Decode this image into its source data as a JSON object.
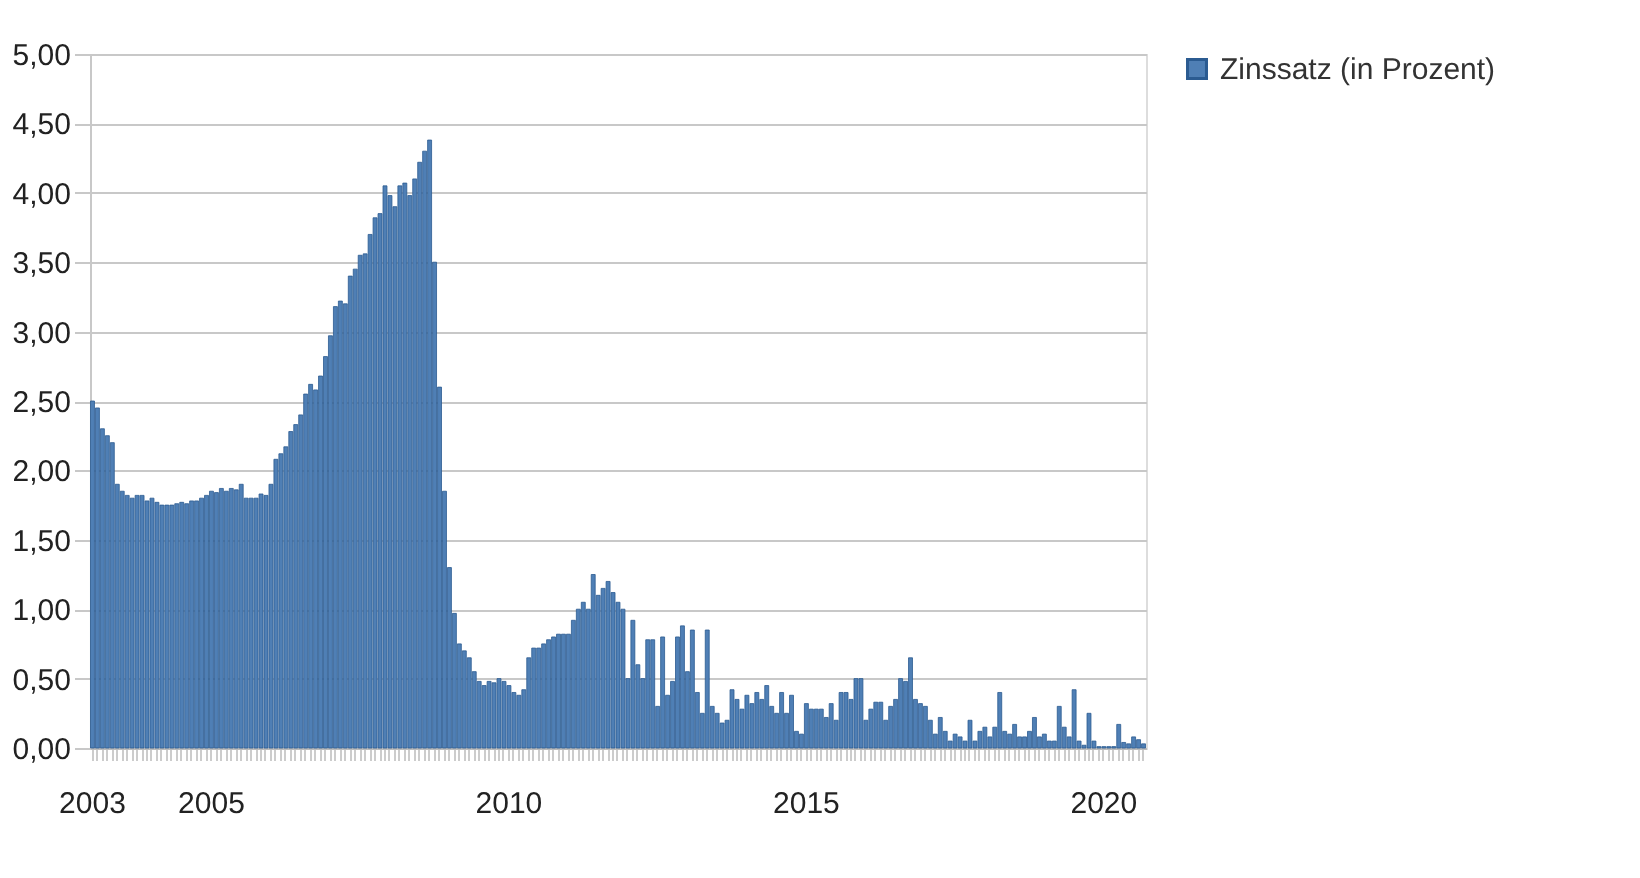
{
  "chart_data": {
    "type": "bar",
    "categories": [
      "2003",
      null,
      null,
      null,
      null,
      null,
      null,
      null,
      null,
      null,
      null,
      null,
      null,
      null,
      null,
      null,
      null,
      null,
      null,
      null,
      null,
      null,
      null,
      null,
      "2005",
      null,
      null,
      null,
      null,
      null,
      null,
      null,
      null,
      null,
      null,
      null,
      null,
      null,
      null,
      null,
      null,
      null,
      null,
      null,
      null,
      null,
      null,
      null,
      null,
      null,
      null,
      null,
      null,
      null,
      null,
      null,
      null,
      null,
      null,
      null,
      null,
      null,
      null,
      null,
      null,
      null,
      null,
      null,
      null,
      null,
      null,
      null,
      null,
      null,
      null,
      null,
      null,
      null,
      null,
      null,
      null,
      null,
      null,
      null,
      "2010",
      null,
      null,
      null,
      null,
      null,
      null,
      null,
      null,
      null,
      null,
      null,
      null,
      null,
      null,
      null,
      null,
      null,
      null,
      null,
      null,
      null,
      null,
      null,
      null,
      null,
      null,
      null,
      null,
      null,
      null,
      null,
      null,
      null,
      null,
      null,
      null,
      null,
      null,
      null,
      null,
      null,
      null,
      null,
      null,
      null,
      null,
      null,
      null,
      null,
      null,
      null,
      null,
      null,
      null,
      null,
      null,
      null,
      null,
      null,
      "2015",
      null,
      null,
      null,
      null,
      null,
      null,
      null,
      null,
      null,
      null,
      null,
      null,
      null,
      null,
      null,
      null,
      null,
      null,
      null,
      null,
      null,
      null,
      null,
      null,
      null,
      null,
      null,
      null,
      null,
      null,
      null,
      null,
      null,
      null,
      null,
      null,
      null,
      null,
      null,
      null,
      null,
      null,
      null,
      null,
      null,
      null,
      null,
      null,
      null,
      null,
      null,
      null,
      null,
      null,
      null,
      null,
      null,
      null,
      null,
      "2020",
      null,
      null,
      null,
      null,
      null,
      null,
      null,
      null
    ],
    "series": [
      {
        "name": "Zinssatz (in Prozent)",
        "color": "#4f7fb5",
        "values": [
          2.5,
          2.45,
          2.3,
          2.25,
          2.2,
          1.9,
          1.85,
          1.82,
          1.8,
          1.82,
          1.82,
          1.78,
          1.8,
          1.77,
          1.75,
          1.75,
          1.75,
          1.76,
          1.77,
          1.76,
          1.78,
          1.78,
          1.8,
          1.82,
          1.85,
          1.84,
          1.87,
          1.85,
          1.87,
          1.86,
          1.9,
          1.8,
          1.8,
          1.8,
          1.83,
          1.82,
          1.9,
          2.08,
          2.12,
          2.17,
          2.28,
          2.33,
          2.4,
          2.55,
          2.62,
          2.58,
          2.68,
          2.82,
          2.97,
          3.18,
          3.22,
          3.2,
          3.4,
          3.45,
          3.55,
          3.56,
          3.7,
          3.82,
          3.85,
          4.05,
          3.98,
          3.9,
          4.05,
          4.07,
          3.98,
          4.1,
          4.22,
          4.3,
          4.38,
          3.5,
          2.6,
          1.85,
          1.3,
          0.97,
          0.75,
          0.7,
          0.65,
          0.55,
          0.48,
          0.45,
          0.48,
          0.47,
          0.5,
          0.48,
          0.45,
          0.4,
          0.38,
          0.42,
          0.65,
          0.72,
          0.72,
          0.75,
          0.78,
          0.8,
          0.82,
          0.82,
          0.82,
          0.92,
          1.0,
          1.05,
          1.0,
          1.25,
          1.1,
          1.15,
          1.2,
          1.12,
          1.05,
          1.0,
          0.5,
          0.92,
          0.6,
          0.5,
          0.78,
          0.78,
          0.3,
          0.8,
          0.38,
          0.48,
          0.8,
          0.88,
          0.55,
          0.85,
          0.4,
          0.25,
          0.85,
          0.3,
          0.25,
          0.18,
          0.2,
          0.42,
          0.35,
          0.28,
          0.38,
          0.32,
          0.4,
          0.35,
          0.45,
          0.3,
          0.25,
          0.4,
          0.25,
          0.38,
          0.12,
          0.1,
          0.32,
          0.28,
          0.28,
          0.28,
          0.22,
          0.32,
          0.2,
          0.4,
          0.4,
          0.35,
          0.5,
          0.5,
          0.2,
          0.28,
          0.33,
          0.33,
          0.2,
          0.3,
          0.35,
          0.5,
          0.48,
          0.65,
          0.35,
          0.32,
          0.3,
          0.2,
          0.1,
          0.22,
          0.12,
          0.05,
          0.1,
          0.08,
          0.05,
          0.2,
          0.05,
          0.12,
          0.15,
          0.08,
          0.15,
          0.4,
          0.12,
          0.1,
          0.17,
          0.08,
          0.08,
          0.12,
          0.22,
          0.08,
          0.1,
          0.05,
          0.05,
          0.3,
          0.15,
          0.08,
          0.42,
          0.05,
          0.02,
          0.25,
          0.05,
          0.01,
          0.01,
          0.01,
          0.01,
          0.17,
          0.04,
          0.03,
          0.08,
          0.06,
          0.03
        ]
      }
    ],
    "ylim": [
      0,
      5
    ],
    "yticks": [
      {
        "value": 0,
        "label": "0,00"
      },
      {
        "value": 0.5,
        "label": "0,50"
      },
      {
        "value": 1,
        "label": "1,00"
      },
      {
        "value": 1.5,
        "label": "1,50"
      },
      {
        "value": 2,
        "label": "2,00"
      },
      {
        "value": 2.5,
        "label": "2,50"
      },
      {
        "value": 3,
        "label": "3,00"
      },
      {
        "value": 3.5,
        "label": "3,50"
      },
      {
        "value": 4,
        "label": "4,00"
      },
      {
        "value": 4.5,
        "label": "4,50"
      },
      {
        "value": 5,
        "label": "5,00"
      }
    ],
    "grid": "y",
    "legend": "right"
  }
}
